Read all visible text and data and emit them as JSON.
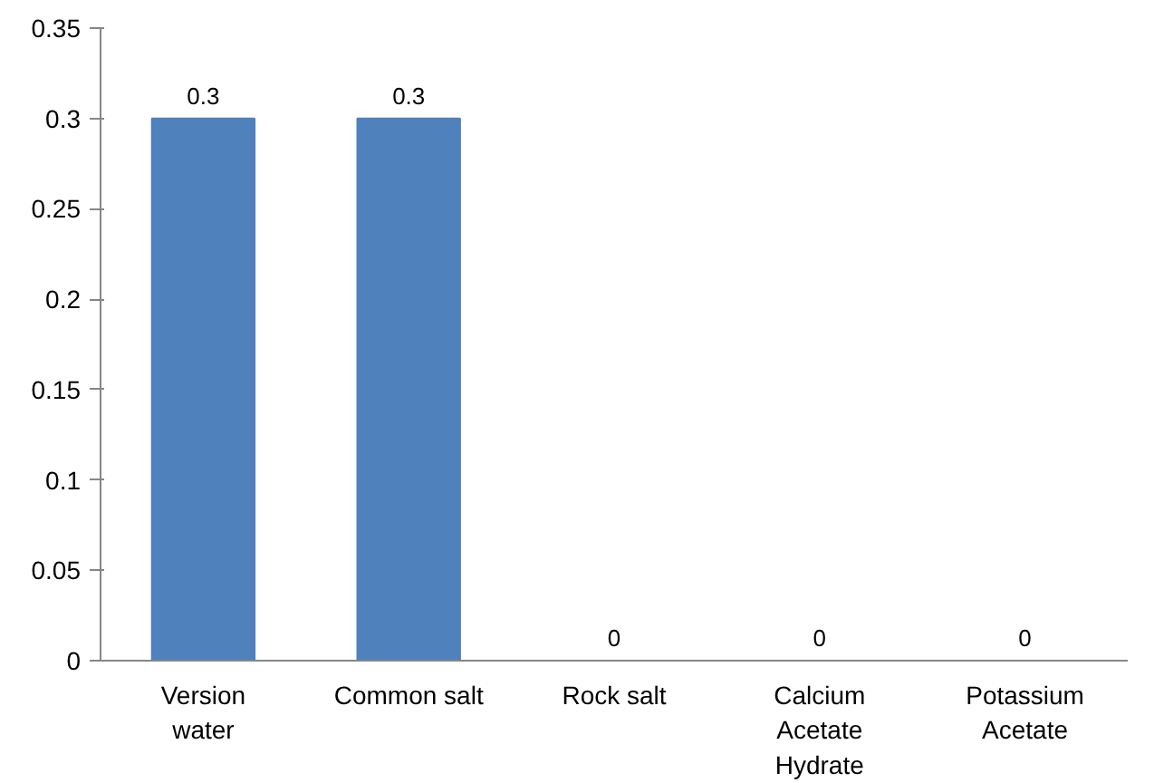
{
  "chart_data": {
    "type": "bar",
    "categories": [
      "Version water",
      "Common salt",
      "Rock salt",
      "Calcium Acetate Hydrate",
      "Potassium Acetate"
    ],
    "values": [
      0.3,
      0.3,
      0,
      0,
      0
    ],
    "color": "#4f81bd",
    "ylim": [
      0,
      0.35
    ],
    "yticks": [
      0,
      0.05,
      0.1,
      0.15,
      0.2,
      0.25,
      0.3,
      0.35
    ],
    "data_labels": true,
    "grid": false
  }
}
